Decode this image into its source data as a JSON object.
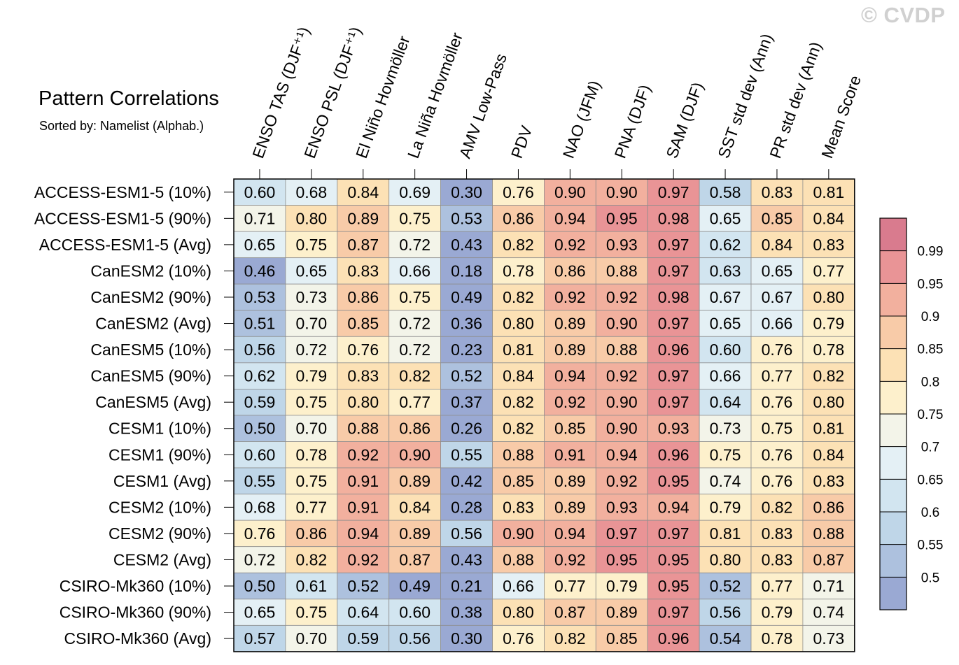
{
  "watermark": "© CVDP",
  "chart_data": {
    "type": "heatmap",
    "title": "Pattern Correlations",
    "subtitle": "Sorted by: Namelist (Alphab.)",
    "columns": [
      "ENSO TAS (DJF⁺¹)",
      "ENSO PSL (DJF⁺¹)",
      "El Niño Hovmöller",
      "La Niña Hovmöller",
      "AMV Low-Pass",
      "PDV",
      "NAO (JFM)",
      "PNA (DJF)",
      "SAM (DJF)",
      "SST std dev (Ann)",
      "PR std dev (Ann)",
      "Mean Score"
    ],
    "rows": [
      "ACCESS-ESM1-5 (10%)",
      "ACCESS-ESM1-5 (90%)",
      "ACCESS-ESM1-5 (Avg)",
      "CanESM2 (10%)",
      "CanESM2 (90%)",
      "CanESM2 (Avg)",
      "CanESM5 (10%)",
      "CanESM5 (90%)",
      "CanESM5 (Avg)",
      "CESM1 (10%)",
      "CESM1 (90%)",
      "CESM1 (Avg)",
      "CESM2 (10%)",
      "CESM2 (90%)",
      "CESM2 (Avg)",
      "CSIRO-Mk360 (10%)",
      "CSIRO-Mk360 (90%)",
      "CSIRO-Mk360 (Avg)"
    ],
    "values": [
      [
        "0.60",
        "0.68",
        "0.84",
        "0.69",
        "0.30",
        "0.76",
        "0.90",
        "0.90",
        "0.97",
        "0.58",
        "0.83",
        "0.81"
      ],
      [
        "0.71",
        "0.80",
        "0.89",
        "0.75",
        "0.53",
        "0.86",
        "0.94",
        "0.95",
        "0.98",
        "0.65",
        "0.85",
        "0.84"
      ],
      [
        "0.65",
        "0.75",
        "0.87",
        "0.72",
        "0.43",
        "0.82",
        "0.92",
        "0.93",
        "0.97",
        "0.62",
        "0.84",
        "0.83"
      ],
      [
        "0.46",
        "0.65",
        "0.83",
        "0.66",
        "0.18",
        "0.78",
        "0.86",
        "0.88",
        "0.97",
        "0.63",
        "0.65",
        "0.77"
      ],
      [
        "0.53",
        "0.73",
        "0.86",
        "0.75",
        "0.49",
        "0.82",
        "0.92",
        "0.92",
        "0.98",
        "0.67",
        "0.67",
        "0.80"
      ],
      [
        "0.51",
        "0.70",
        "0.85",
        "0.72",
        "0.36",
        "0.80",
        "0.89",
        "0.90",
        "0.97",
        "0.65",
        "0.66",
        "0.79"
      ],
      [
        "0.56",
        "0.72",
        "0.76",
        "0.72",
        "0.23",
        "0.81",
        "0.89",
        "0.88",
        "0.96",
        "0.60",
        "0.76",
        "0.78"
      ],
      [
        "0.62",
        "0.79",
        "0.83",
        "0.82",
        "0.52",
        "0.84",
        "0.94",
        "0.92",
        "0.97",
        "0.66",
        "0.77",
        "0.82"
      ],
      [
        "0.59",
        "0.75",
        "0.80",
        "0.77",
        "0.37",
        "0.82",
        "0.92",
        "0.90",
        "0.97",
        "0.64",
        "0.76",
        "0.80"
      ],
      [
        "0.50",
        "0.70",
        "0.88",
        "0.86",
        "0.26",
        "0.82",
        "0.85",
        "0.90",
        "0.93",
        "0.73",
        "0.75",
        "0.81"
      ],
      [
        "0.60",
        "0.78",
        "0.92",
        "0.90",
        "0.55",
        "0.88",
        "0.91",
        "0.94",
        "0.96",
        "0.75",
        "0.76",
        "0.84"
      ],
      [
        "0.55",
        "0.75",
        "0.91",
        "0.89",
        "0.42",
        "0.85",
        "0.89",
        "0.92",
        "0.95",
        "0.74",
        "0.76",
        "0.83"
      ],
      [
        "0.68",
        "0.77",
        "0.91",
        "0.84",
        "0.28",
        "0.83",
        "0.89",
        "0.93",
        "0.94",
        "0.79",
        "0.82",
        "0.86"
      ],
      [
        "0.76",
        "0.86",
        "0.94",
        "0.89",
        "0.56",
        "0.90",
        "0.94",
        "0.97",
        "0.97",
        "0.81",
        "0.83",
        "0.88"
      ],
      [
        "0.72",
        "0.82",
        "0.92",
        "0.87",
        "0.43",
        "0.88",
        "0.92",
        "0.95",
        "0.95",
        "0.80",
        "0.83",
        "0.87"
      ],
      [
        "0.50",
        "0.61",
        "0.52",
        "0.49",
        "0.21",
        "0.66",
        "0.77",
        "0.79",
        "0.95",
        "0.52",
        "0.77",
        "0.71"
      ],
      [
        "0.65",
        "0.75",
        "0.64",
        "0.60",
        "0.38",
        "0.80",
        "0.87",
        "0.89",
        "0.97",
        "0.56",
        "0.79",
        "0.74"
      ],
      [
        "0.57",
        "0.70",
        "0.59",
        "0.56",
        "0.30",
        "0.76",
        "0.82",
        "0.85",
        "0.96",
        "0.54",
        "0.78",
        "0.73"
      ]
    ],
    "colorbar": {
      "thresholds": [
        0.5,
        0.55,
        0.6,
        0.65,
        0.7,
        0.75,
        0.8,
        0.85,
        0.9,
        0.95,
        0.99
      ],
      "labels": [
        "0.5",
        "0.55",
        "0.6",
        "0.65",
        "0.7",
        "0.75",
        "0.8",
        "0.85",
        "0.9",
        "0.95",
        "0.99"
      ],
      "colors": [
        "#9aa9d3",
        "#adc1de",
        "#bfd6e8",
        "#d2e5f0",
        "#e4f0f5",
        "#f3f4e9",
        "#fdf0cc",
        "#fce1b5",
        "#f8cba8",
        "#f2b09e",
        "#e99496",
        "#d97b8e"
      ]
    }
  }
}
